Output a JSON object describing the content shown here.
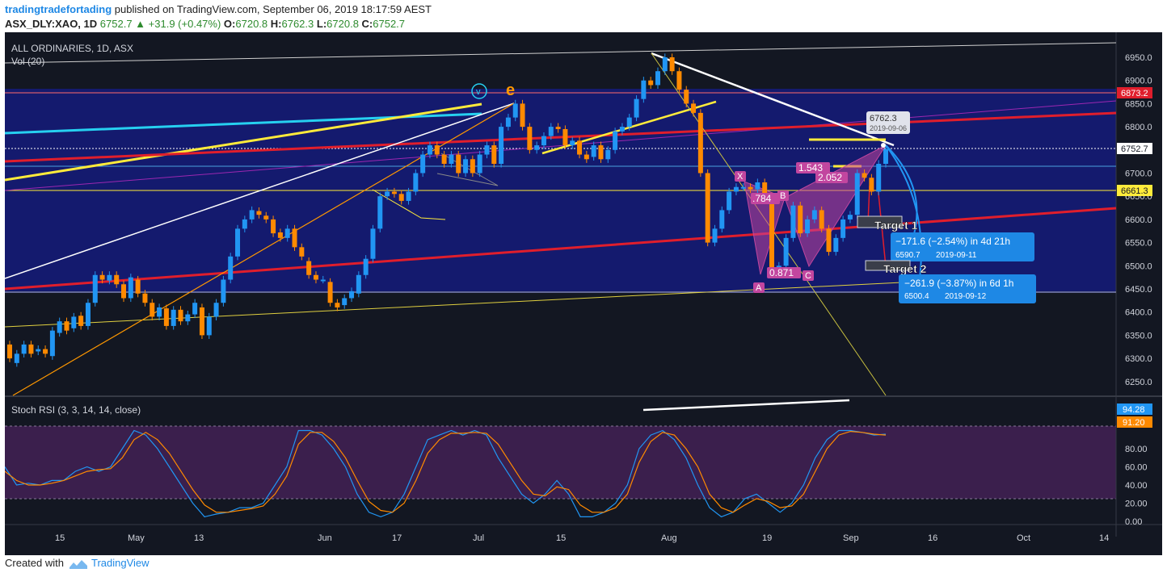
{
  "header": {
    "author": "tradingtradefortading",
    "published": "published on TradingView.com, September 06, 2019 18:17:59 AEST",
    "symbol": "ASX_DLY:XAO, 1D",
    "last": "6752.7",
    "change_arrow": "▲",
    "change": "+31.9 (+0.47%)",
    "open_label": "O:",
    "open": "6720.8",
    "high_label": "H:",
    "high": "6762.3",
    "low_label": "L:",
    "low": "6720.8",
    "close_label": "C:",
    "close": "6752.7"
  },
  "footer": {
    "created_with": "Created with",
    "brand": "TradingView"
  },
  "colors": {
    "background": "#131722",
    "zone": "#141a6e",
    "up": "#2196f3",
    "down": "#ff8a00",
    "red_line": "#e01e2c",
    "yellow_line": "#ffeb3b",
    "cyan_line": "#26d0f0",
    "pattern": "#c2469f",
    "rsi_band": "#3b1f4d"
  },
  "chart_data": [
    {
      "type": "candlestick",
      "title": "ALL ORDINARIES, 1D, ASX",
      "subtitle": "Vol (20)",
      "ylim": [
        6200,
        6980
      ],
      "y_ticks": [
        "6950.0",
        "6900.0",
        "6850.0",
        "6800.0",
        "6750.0",
        "6700.0",
        "6650.0",
        "6600.0",
        "6550.0",
        "6500.0",
        "6450.0",
        "6400.0",
        "6350.0",
        "6300.0",
        "6250.0"
      ],
      "x_labels": [
        "15",
        "May",
        "13",
        "Jun",
        "17",
        "Jul",
        "15",
        "Aug",
        "19",
        "Sep",
        "16",
        "Oct",
        "14"
      ],
      "price_tags": {
        "tag_6873": "6873.2",
        "tag_6752": "6752.7",
        "tag_6661": "6661.3"
      },
      "candles": [
        [
          6330,
          6300
        ],
        [
          6290,
          6310
        ],
        [
          6310,
          6330
        ],
        [
          6330,
          6310
        ],
        [
          6315,
          6320
        ],
        [
          6320,
          6310
        ],
        [
          6305,
          6360
        ],
        [
          6355,
          6380
        ],
        [
          6380,
          6360
        ],
        [
          6365,
          6390
        ],
        [
          6392,
          6370
        ],
        [
          6370,
          6420
        ],
        [
          6420,
          6480
        ],
        [
          6480,
          6470
        ],
        [
          6468,
          6480
        ],
        [
          6480,
          6460
        ],
        [
          6460,
          6430
        ],
        [
          6430,
          6475
        ],
        [
          6470,
          6440
        ],
        [
          6440,
          6420
        ],
        [
          6420,
          6390
        ],
        [
          6390,
          6410
        ],
        [
          6408,
          6370
        ],
        [
          6370,
          6405
        ],
        [
          6405,
          6380
        ],
        [
          6380,
          6395
        ],
        [
          6395,
          6420
        ],
        [
          6410,
          6350
        ],
        [
          6350,
          6390
        ],
        [
          6390,
          6420
        ],
        [
          6420,
          6470
        ],
        [
          6470,
          6520
        ],
        [
          6520,
          6580
        ],
        [
          6580,
          6600
        ],
        [
          6600,
          6620
        ],
        [
          6618,
          6610
        ],
        [
          6608,
          6600
        ],
        [
          6600,
          6570
        ],
        [
          6572,
          6560
        ],
        [
          6560,
          6580
        ],
        [
          6580,
          6540
        ],
        [
          6540,
          6520
        ],
        [
          6510,
          6480
        ],
        [
          6480,
          6470
        ],
        [
          6470,
          6470
        ],
        [
          6465,
          6420
        ],
        [
          6420,
          6410
        ],
        [
          6415,
          6430
        ],
        [
          6430,
          6445
        ],
        [
          6440,
          6480
        ],
        [
          6480,
          6515
        ],
        [
          6515,
          6580
        ],
        [
          6580,
          6650
        ],
        [
          6650,
          6660
        ],
        [
          6660,
          6655
        ],
        [
          6655,
          6640
        ],
        [
          6640,
          6660
        ],
        [
          6660,
          6700
        ],
        [
          6700,
          6740
        ],
        [
          6740,
          6760
        ],
        [
          6760,
          6740
        ],
        [
          6740,
          6720
        ],
        [
          6720,
          6740
        ],
        [
          6740,
          6700
        ],
        [
          6700,
          6730
        ],
        [
          6730,
          6700
        ],
        [
          6700,
          6740
        ],
        [
          6740,
          6760
        ],
        [
          6760,
          6720
        ],
        [
          6720,
          6800
        ],
        [
          6800,
          6820
        ],
        [
          6820,
          6850
        ],
        [
          6850,
          6800
        ],
        [
          6800,
          6750
        ],
        [
          6750,
          6760
        ],
        [
          6760,
          6780
        ],
        [
          6780,
          6800
        ],
        [
          6800,
          6795
        ],
        [
          6795,
          6760
        ],
        [
          6760,
          6770
        ],
        [
          6770,
          6740
        ],
        [
          6740,
          6730
        ],
        [
          6735,
          6760
        ],
        [
          6760,
          6730
        ],
        [
          6730,
          6750
        ],
        [
          6750,
          6790
        ],
        [
          6790,
          6800
        ],
        [
          6800,
          6820
        ],
        [
          6820,
          6860
        ],
        [
          6860,
          6900
        ],
        [
          6900,
          6890
        ],
        [
          6890,
          6920
        ],
        [
          6920,
          6950
        ],
        [
          6950,
          6920
        ],
        [
          6920,
          6880
        ],
        [
          6880,
          6850
        ],
        [
          6850,
          6830
        ],
        [
          6830,
          6700
        ],
        [
          6700,
          6550
        ],
        [
          6550,
          6580
        ],
        [
          6580,
          6620
        ],
        [
          6620,
          6660
        ],
        [
          6660,
          6670
        ],
        [
          6670,
          6670
        ],
        [
          6670,
          6665
        ],
        [
          6665,
          6680
        ],
        [
          6680,
          6650
        ],
        [
          6650,
          6490
        ],
        [
          6490,
          6500
        ],
        [
          6500,
          6560
        ],
        [
          6560,
          6630
        ],
        [
          6630,
          6570
        ],
        [
          6570,
          6600
        ],
        [
          6600,
          6620
        ],
        [
          6620,
          6580
        ],
        [
          6580,
          6530
        ],
        [
          6530,
          6560
        ],
        [
          6560,
          6600
        ],
        [
          6600,
          6610
        ],
        [
          6610,
          6700
        ],
        [
          6700,
          6690
        ],
        [
          6690,
          6660
        ],
        [
          6660,
          6720
        ],
        [
          6720,
          6752
        ]
      ]
    },
    {
      "type": "line",
      "title": "Stoch RSI (3, 3, 14, 14, close)",
      "ylim": [
        0,
        100
      ],
      "y_ticks": [
        "80.00",
        "60.00",
        "40.00",
        "20.00",
        "0.00"
      ],
      "last_values": {
        "k": "94.28",
        "d": "91.20"
      },
      "series": [
        {
          "values": [
            60,
            40,
            42,
            40,
            45,
            45,
            55,
            60,
            55,
            60,
            80,
            100,
            95,
            80,
            60,
            40,
            20,
            5,
            8,
            10,
            15,
            15,
            20,
            40,
            60,
            100,
            100,
            95,
            80,
            60,
            30,
            10,
            5,
            10,
            30,
            60,
            90,
            95,
            100,
            95,
            100,
            95,
            70,
            50,
            30,
            20,
            30,
            45,
            30,
            5,
            5,
            10,
            20,
            40,
            80,
            95,
            100,
            90,
            70,
            40,
            15,
            5,
            10,
            25,
            30,
            20,
            10,
            20,
            40,
            70,
            90,
            100,
            100,
            98,
            95,
            96
          ]
        },
        {
          "values": [
            55,
            45,
            40,
            40,
            42,
            45,
            50,
            55,
            57,
            58,
            70,
            90,
            98,
            90,
            75,
            55,
            35,
            18,
            10,
            10,
            12,
            14,
            17,
            30,
            50,
            85,
            98,
            98,
            88,
            70,
            45,
            22,
            12,
            10,
            20,
            45,
            75,
            90,
            97,
            97,
            98,
            97,
            85,
            65,
            45,
            30,
            28,
            38,
            35,
            18,
            10,
            10,
            15,
            30,
            65,
            88,
            98,
            95,
            80,
            60,
            30,
            15,
            10,
            18,
            25,
            22,
            15,
            17,
            30,
            55,
            80,
            95,
            99,
            98,
            96,
            95
          ]
        }
      ]
    }
  ],
  "annotations": {
    "tooltip_price": "6762.3",
    "tooltip_date": "2019-09-06",
    "fib_1543": "1.543",
    "fib_2052": "2.052",
    "fib_784": ".784",
    "fib_871": "0.871",
    "pt_x": "X",
    "pt_a": "A",
    "pt_b": "B",
    "pt_c": "C",
    "marker_v": "v",
    "marker_e": "e",
    "target1_label": "Target 1",
    "target1_line1": "−171.6 (−2.54%) in 4d 21h",
    "target1_line2": "6590.7",
    "target1_date": "2019-09-11",
    "target2_label": "Target 2",
    "target2_line1": "−261.9 (−3.87%) in 6d 1h",
    "target2_line2": "6500.4",
    "target2_date": "2019-09-12"
  }
}
